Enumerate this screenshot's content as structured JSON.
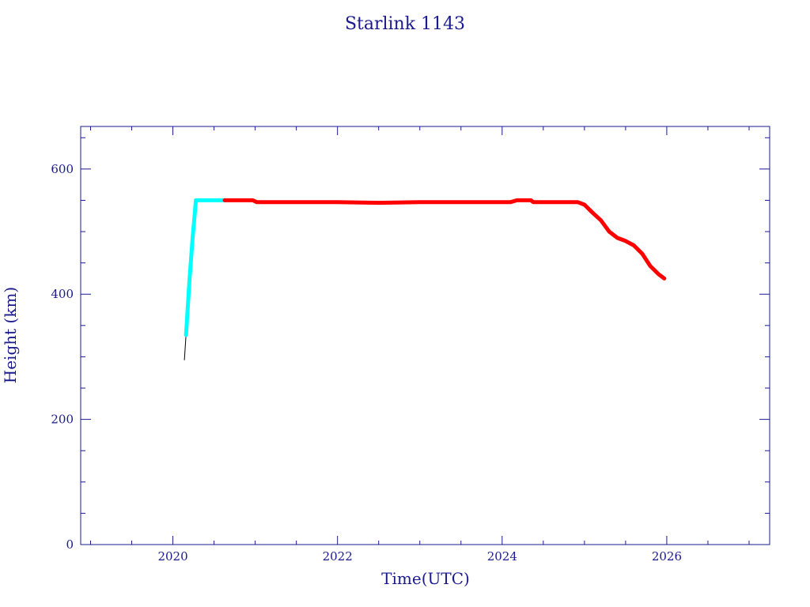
{
  "chart_data": {
    "type": "line",
    "title": "Starlink 1143",
    "xlabel": "Time(UTC)",
    "ylabel": "Height (km)",
    "xlim": [
      2018.88,
      2027.25
    ],
    "ylim": [
      0,
      668
    ],
    "x_ticks": [
      "2020",
      "2022",
      "2024",
      "2026"
    ],
    "y_ticks": [
      "0",
      "200",
      "400",
      "600"
    ],
    "grid": false,
    "colors": {
      "axes": "#1a1a8c",
      "raising": "#00ffff",
      "operational": "#ff0000",
      "initial": "#000000"
    },
    "series": [
      {
        "color": "#000000",
        "x": [
          2020.14,
          2020.16
        ],
        "y": [
          295,
          335
        ]
      },
      {
        "color": "#00ffff",
        "x": [
          2020.16,
          2020.2,
          2020.24,
          2020.28,
          2020.35,
          2020.5,
          2020.63
        ],
        "y": [
          335,
          420,
          490,
          550,
          550,
          550,
          550
        ]
      },
      {
        "color": "#ff0000",
        "x": [
          2020.63,
          2020.8,
          2020.97,
          2021.02,
          2021.5,
          2022.0,
          2022.5,
          2023.0,
          2023.5,
          2024.1,
          2024.18,
          2024.35,
          2024.38,
          2024.6,
          2024.92,
          2025.0,
          2025.1,
          2025.2,
          2025.3,
          2025.4,
          2025.5,
          2025.6,
          2025.7,
          2025.8,
          2025.9,
          2025.97
        ],
        "y": [
          550,
          550,
          550,
          547,
          547,
          547,
          546,
          547,
          547,
          547,
          550,
          550,
          547,
          547,
          547,
          543,
          530,
          518,
          500,
          490,
          485,
          478,
          465,
          445,
          432,
          425
        ]
      }
    ]
  }
}
